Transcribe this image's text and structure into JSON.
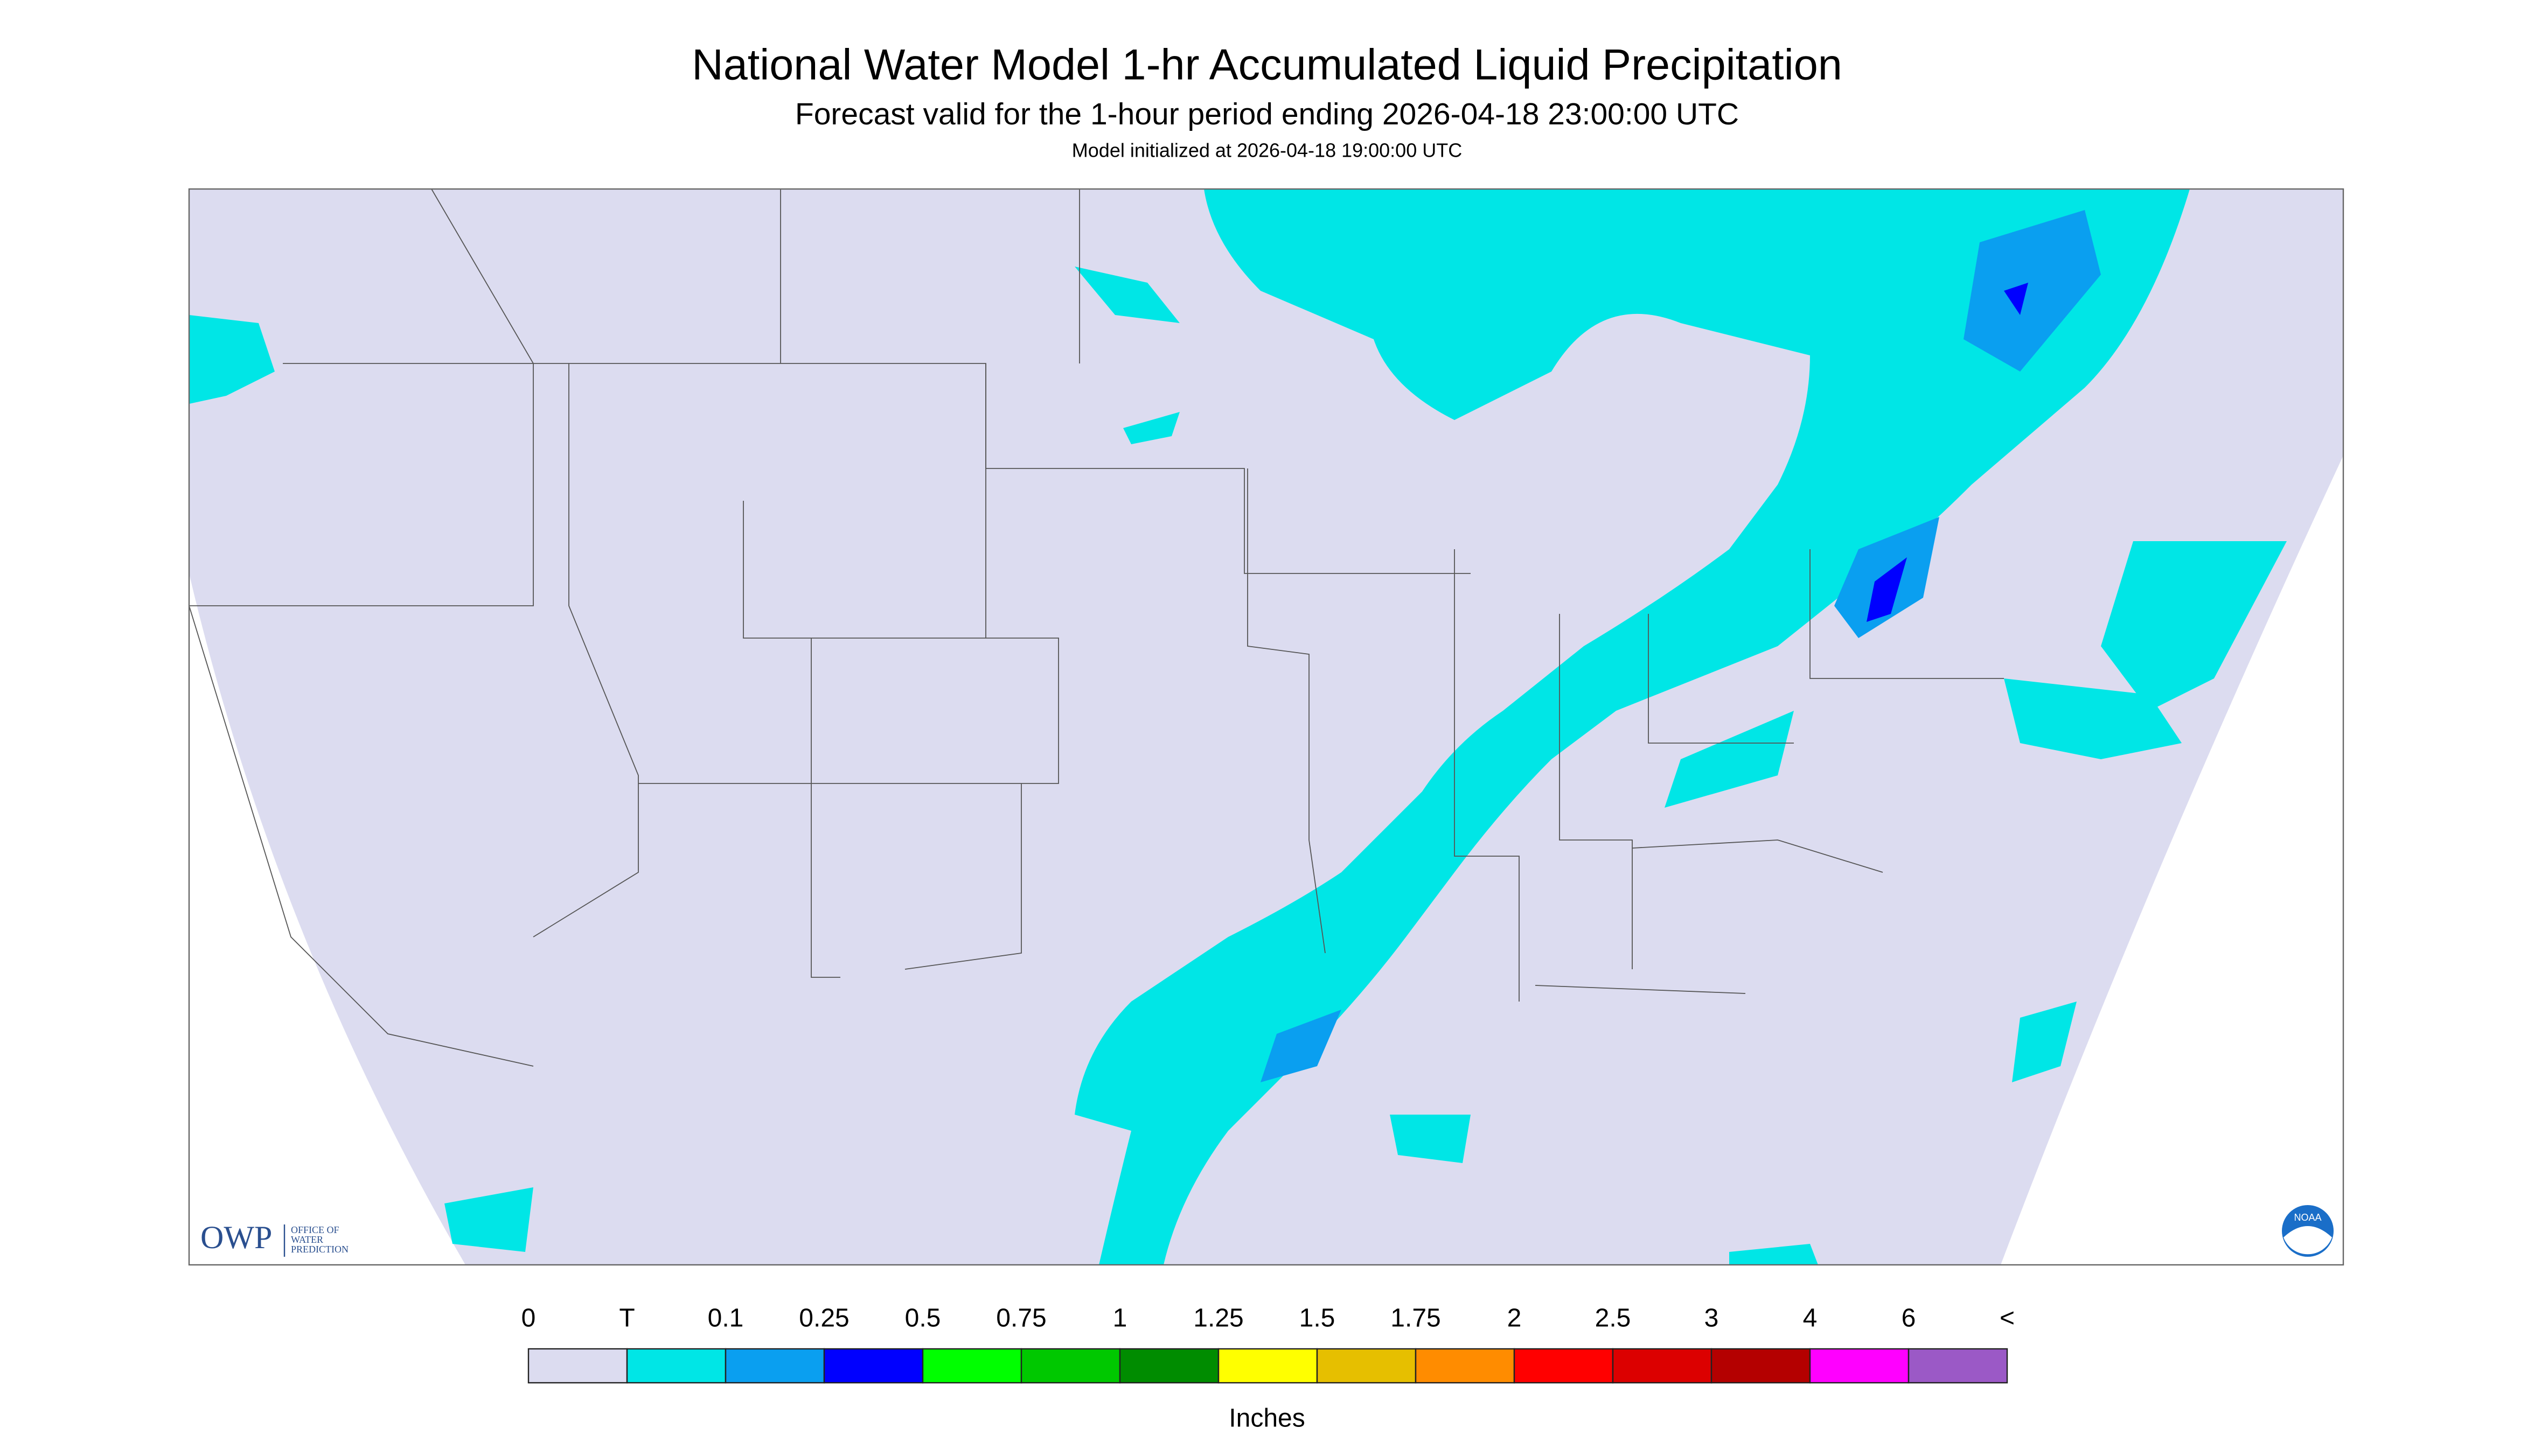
{
  "header": {
    "title": "National Water Model 1-hr Accumulated Liquid Precipitation",
    "subtitle": "Forecast valid for the 1-hour period ending 2026-04-18 23:00:00 UTC",
    "note": "Model initialized at 2026-04-18 19:00:00 UTC"
  },
  "legend": {
    "labels": [
      "0",
      "T",
      "0.1",
      "0.25",
      "0.5",
      "0.75",
      "1",
      "1.25",
      "1.5",
      "1.75",
      "2",
      "2.5",
      "3",
      "4",
      "6",
      "<"
    ],
    "colors": [
      "#dcdcf0",
      "#00e6e6",
      "#0a9ff0",
      "#0000ff",
      "#00ff00",
      "#00c800",
      "#008c00",
      "#ffff00",
      "#e6bf00",
      "#ff8c00",
      "#ff0000",
      "#dc0000",
      "#b40000",
      "#ff00ff",
      "#9b59c6"
    ],
    "unit": "Inches"
  },
  "logos": {
    "owp": "OWP",
    "owp_text": [
      "OFFICE OF",
      "WATER",
      "PREDICTION"
    ],
    "noaa": "NOAA"
  }
}
